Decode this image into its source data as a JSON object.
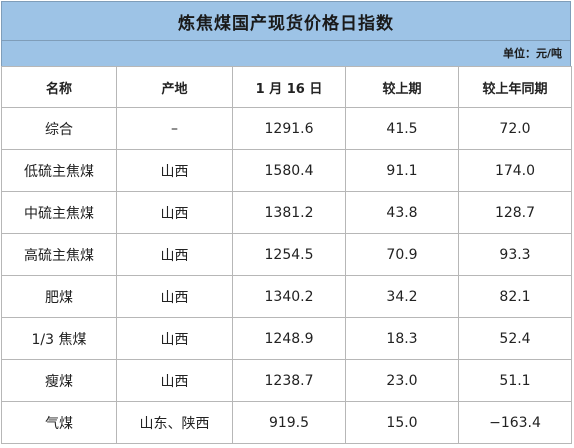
{
  "title": "炼焦煤国产现货价格日指数",
  "unit": "单位：元/吨",
  "headers": [
    "名称",
    "产地",
    "1 月 16 日",
    "较上期",
    "较上年同期"
  ],
  "colors": {
    "header_bg": "#9dc3e6",
    "up": "#e02020",
    "down": "#12a83a"
  },
  "rows": [
    {
      "name": "综合",
      "origin": "–",
      "price": "1291.6",
      "vs_prev": "41.5",
      "vs_year": "72.0",
      "year_trend": "up"
    },
    {
      "name": "低硫主焦煤",
      "origin": "山西",
      "price": "1580.4",
      "vs_prev": "91.1",
      "vs_year": "174.0",
      "year_trend": "up"
    },
    {
      "name": "中硫主焦煤",
      "origin": "山西",
      "price": "1381.2",
      "vs_prev": "43.8",
      "vs_year": "128.7",
      "year_trend": "up"
    },
    {
      "name": "高硫主焦煤",
      "origin": "山西",
      "price": "1254.5",
      "vs_prev": "70.9",
      "vs_year": "93.3",
      "year_trend": "up"
    },
    {
      "name": "肥煤",
      "origin": "山西",
      "price": "1340.2",
      "vs_prev": "34.2",
      "vs_year": "82.1",
      "year_trend": "up"
    },
    {
      "name": "1/3 焦煤",
      "origin": "山西",
      "price": "1248.9",
      "vs_prev": "18.3",
      "vs_year": "52.4",
      "year_trend": "up"
    },
    {
      "name": "瘦煤",
      "origin": "山西",
      "price": "1238.7",
      "vs_prev": "23.0",
      "vs_year": "51.1",
      "year_trend": "up"
    },
    {
      "name": "气煤",
      "origin": "山东、陕西",
      "price": "919.5",
      "vs_prev": "15.0",
      "vs_year": "−163.4",
      "year_trend": "down"
    }
  ]
}
